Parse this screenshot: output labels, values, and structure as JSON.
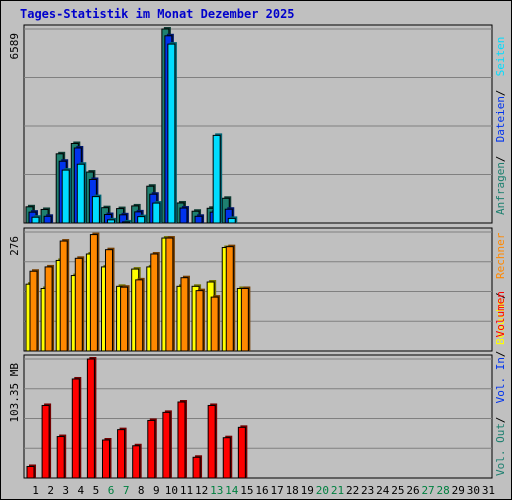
{
  "page": {
    "title": "Tages-Statistik im Monat Dezember 2025"
  },
  "colors": {
    "background": "#c0c0c0",
    "plot_bg": "#c0c0c0",
    "grid": "#808080",
    "hits": "#1e8070",
    "files": "#0033ee",
    "pages": "#00ddff",
    "visits": "#ffff00",
    "sites": "#ff8800",
    "kbytes": "#ff0000",
    "title": "#0000cc",
    "weekend_day": "#008040"
  },
  "chart_data": [
    {
      "type": "bar",
      "panel": "top",
      "ymax_label": "6589",
      "ylim": [
        0,
        6589
      ],
      "grid": true,
      "categories": [
        "1",
        "2",
        "3",
        "4",
        "5",
        "6",
        "7",
        "8",
        "9",
        "10",
        "11",
        "12",
        "13",
        "14",
        "15",
        "16",
        "17",
        "18",
        "19",
        "20",
        "21",
        "22",
        "23",
        "24",
        "25",
        "26",
        "27",
        "28",
        "29",
        "30",
        "31"
      ],
      "series": [
        {
          "name": "Anfragen",
          "values": [
            550,
            460,
            2350,
            2700,
            1730,
            520,
            490,
            580,
            1250,
            6589,
            680,
            400,
            500,
            840,
            0,
            0,
            0,
            0,
            0,
            0,
            0,
            0,
            0,
            0,
            0,
            0,
            0,
            0,
            0,
            0,
            0
          ]
        },
        {
          "name": "Dateien",
          "values": [
            470,
            330,
            2200,
            2650,
            1580,
            390,
            380,
            480,
            1080,
            6460,
            610,
            330,
            470,
            570,
            0,
            0,
            0,
            0,
            0,
            0,
            0,
            0,
            0,
            0,
            0,
            0,
            0,
            0,
            0,
            0,
            0
          ]
        },
        {
          "name": "Seiten",
          "values": [
            400,
            190,
            2000,
            2200,
            1100,
            310,
            240,
            420,
            880,
            6280,
            200,
            190,
            3180,
            360,
            0,
            0,
            0,
            0,
            0,
            0,
            0,
            0,
            0,
            0,
            0,
            0,
            0,
            0,
            0,
            0,
            0
          ]
        }
      ]
    },
    {
      "type": "bar",
      "panel": "middle",
      "ymax_label": "276",
      "ylim": [
        0,
        276
      ],
      "grid": true,
      "categories": [
        "1",
        "2",
        "3",
        "4",
        "5",
        "6",
        "7",
        "8",
        "9",
        "10",
        "11",
        "12",
        "13",
        "14",
        "15",
        "16",
        "17",
        "18",
        "19",
        "20",
        "21",
        "22",
        "23",
        "24",
        "25",
        "26",
        "27",
        "28",
        "29",
        "30",
        "31"
      ],
      "series": [
        {
          "name": "Besuche",
          "values": [
            155,
            145,
            210,
            175,
            225,
            195,
            150,
            190,
            195,
            262,
            150,
            150,
            160,
            240,
            145,
            0,
            0,
            0,
            0,
            0,
            0,
            0,
            0,
            0,
            0,
            0,
            0,
            0,
            0,
            0,
            0
          ]
        },
        {
          "name": "Rechner",
          "values": [
            185,
            195,
            255,
            215,
            270,
            235,
            148,
            165,
            225,
            262,
            170,
            140,
            125,
            242,
            145,
            0,
            0,
            0,
            0,
            0,
            0,
            0,
            0,
            0,
            0,
            0,
            0,
            0,
            0,
            0,
            0
          ]
        }
      ]
    },
    {
      "type": "bar",
      "panel": "bottom",
      "ymax_label": "103.35 MB",
      "ylim": [
        0,
        103.35
      ],
      "grid": true,
      "categories": [
        "1",
        "2",
        "3",
        "4",
        "5",
        "6",
        "7",
        "8",
        "9",
        "10",
        "11",
        "12",
        "13",
        "14",
        "15",
        "16",
        "17",
        "18",
        "19",
        "20",
        "21",
        "22",
        "23",
        "24",
        "25",
        "26",
        "27",
        "28",
        "29",
        "30",
        "31"
      ],
      "series": [
        {
          "name": "Volumen",
          "values": [
            10,
            63,
            36,
            86,
            103.35,
            33,
            42,
            28,
            50,
            57,
            66,
            18,
            63,
            35,
            44,
            0,
            0,
            0,
            0,
            0,
            0,
            0,
            0,
            0,
            0,
            0,
            0,
            0,
            0,
            0,
            0
          ]
        }
      ]
    }
  ],
  "legend": {
    "top": [
      {
        "label": "Anfragen",
        "color": "#1e8070"
      },
      {
        "label": "Dateien",
        "color": "#0033ee"
      },
      {
        "label": "Seiten",
        "color": "#00ddff"
      }
    ],
    "middle": [
      {
        "label": "Besuche",
        "color": "#ffff00"
      },
      {
        "label": "Rechner",
        "color": "#ff8800"
      }
    ],
    "bottom": [
      {
        "label": "Vol. Out",
        "color": "#1e8070"
      },
      {
        "label": "Vol. In",
        "color": "#0033ee"
      },
      {
        "label": "Volumen",
        "color": "#ff0000"
      }
    ]
  },
  "weekend_days": [
    "6",
    "7",
    "13",
    "14",
    "20",
    "21",
    "27",
    "28"
  ]
}
